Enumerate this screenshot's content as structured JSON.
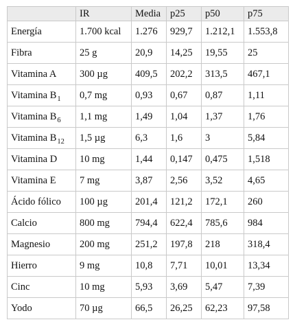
{
  "table": {
    "headers": [
      "",
      "IR",
      "Media",
      "p25",
      "p50",
      "p75"
    ],
    "rows": [
      {
        "nutrient": "Energía",
        "sub": "",
        "ir": "1.700 kcal",
        "media": "1.276",
        "p25": "929,7",
        "p50": "1.212,1",
        "p75": "1.553,8"
      },
      {
        "nutrient": "Fibra",
        "sub": "",
        "ir": "25 g",
        "media": "20,9",
        "p25": "14,25",
        "p50": "19,55",
        "p75": "25"
      },
      {
        "nutrient": "Vitamina A",
        "sub": "",
        "ir": "300 µg",
        "media": "409,5",
        "p25": "202,2",
        "p50": "313,5",
        "p75": "467,1"
      },
      {
        "nutrient": "Vitamina B",
        "sub": "1",
        "ir": "0,7 mg",
        "media": "0,93",
        "p25": "0,67",
        "p50": "0,87",
        "p75": "1,11"
      },
      {
        "nutrient": "Vitamina B",
        "sub": "6",
        "ir": "1,1 mg",
        "media": "1,49",
        "p25": "1,04",
        "p50": "1,37",
        "p75": "1,76"
      },
      {
        "nutrient": "Vitamina B",
        "sub": "12",
        "ir": "1,5 µg",
        "media": "6,3",
        "p25": "1,6",
        "p50": "3",
        "p75": "5,84"
      },
      {
        "nutrient": "Vitamina D",
        "sub": "",
        "ir": "10 mg",
        "media": "1,44",
        "p25": "0,147",
        "p50": "0,475",
        "p75": "1,518"
      },
      {
        "nutrient": "Vitamina E",
        "sub": "",
        "ir": "7 mg",
        "media": "3,87",
        "p25": "2,56",
        "p50": "3,52",
        "p75": "4,65"
      },
      {
        "nutrient": "Ácido fólico",
        "sub": "",
        "ir": "100 µg",
        "media": "201,4",
        "p25": "121,2",
        "p50": "172,1",
        "p75": "260"
      },
      {
        "nutrient": "Calcio",
        "sub": "",
        "ir": "800 mg",
        "media": "794,4",
        "p25": "622,4",
        "p50": "785,6",
        "p75": "984"
      },
      {
        "nutrient": "Magnesio",
        "sub": "",
        "ir": "200 mg",
        "media": "251,2",
        "p25": "197,8",
        "p50": "218",
        "p75": "318,4"
      },
      {
        "nutrient": "Hierro",
        "sub": "",
        "ir": "9 mg",
        "media": "10,8",
        "p25": "7,71",
        "p50": "10,01",
        "p75": "13,34"
      },
      {
        "nutrient": "Cinc",
        "sub": "",
        "ir": "10 mg",
        "media": "5,93",
        "p25": "3,69",
        "p50": "5,47",
        "p75": "7,39"
      },
      {
        "nutrient": "Yodo",
        "sub": "",
        "ir": "70 µg",
        "media": "66,5",
        "p25": "26,25",
        "p50": "62,23",
        "p75": "97,58"
      }
    ]
  }
}
